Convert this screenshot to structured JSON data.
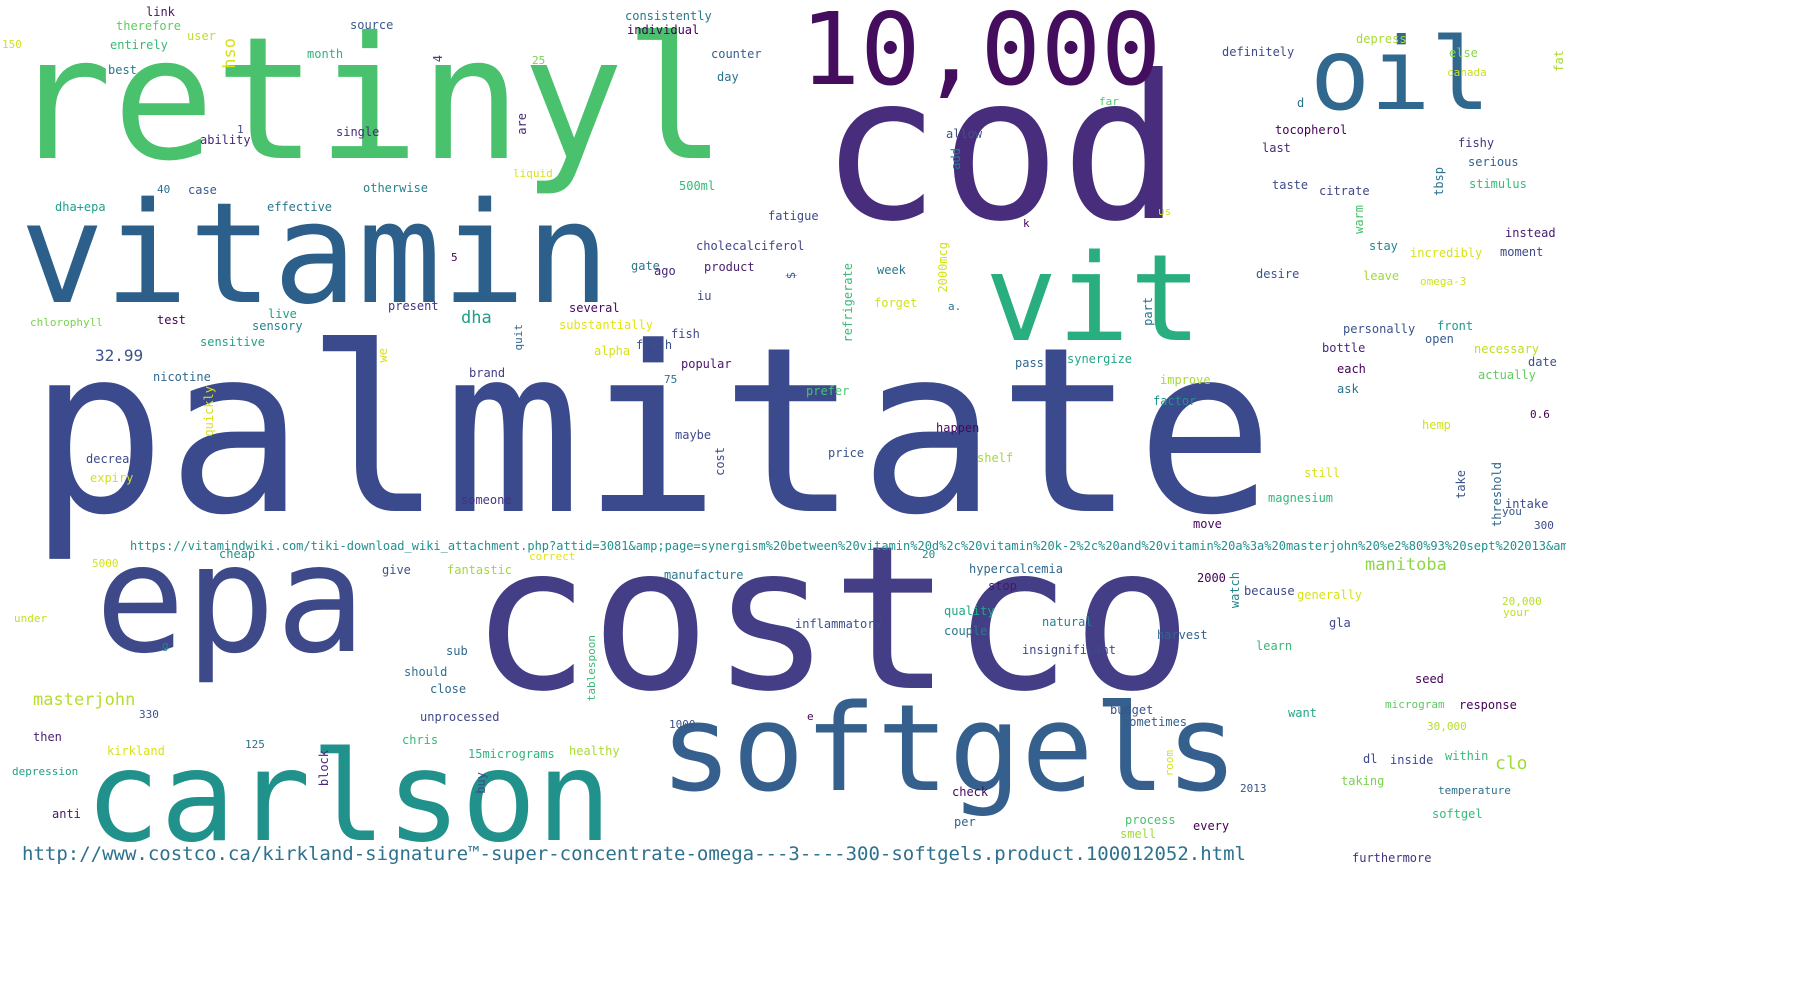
{
  "words": [
    {
      "text": "palmitate",
      "color": "#3b4a8c"
    },
    {
      "text": "costco",
      "color": "#433e85"
    },
    {
      "text": "cod",
      "color": "#472d7b"
    },
    {
      "text": "retinyl",
      "color": "#4ac16d"
    },
    {
      "text": "vitamin",
      "color": "#2c5f8a"
    },
    {
      "text": "epa",
      "color": "#3e4989"
    },
    {
      "text": "10,000",
      "color": "#440d5d"
    },
    {
      "text": "oil",
      "color": "#30688e"
    },
    {
      "text": "vit",
      "color": "#29af7f"
    },
    {
      "text": "softgels",
      "color": "#355f8d"
    },
    {
      "text": "carlson",
      "color": "#21918c"
    },
    {
      "text": "http://www.costco.ca/kirkland-signature™-super-concentrate-omega---3----300-softgels.product.100012052.html",
      "color": "#2d718e"
    },
    {
      "text": "https://vitamindwiki.com/tiki-download_wiki_attachment.php?attid=3081&amp;page=synergism%20between%20vitamin%20d%2c%20vitamin%20k-2%2c%20and%20vitamin%20a%3a%20masterjohn%20%e2%80%93%20sept%202013&amp;download=y",
      "color": "#21908d"
    },
    {
      "text": "manitoba",
      "color": "#8fd744"
    },
    {
      "text": "masterjohn",
      "color": "#b5de2b"
    },
    {
      "text": "dha",
      "color": "#1f9e89"
    },
    {
      "text": "32.99",
      "color": "#3b528b"
    },
    {
      "text": "clo",
      "color": "#a0da39"
    },
    {
      "text": "hso",
      "color": "#d8e219"
    },
    {
      "text": "chlorophyll",
      "color": "#7ad151"
    },
    {
      "text": "cholecalciferol",
      "color": "#414487"
    },
    {
      "text": "hypercalcemia",
      "color": "#31688e"
    },
    {
      "text": "therefore",
      "color": "#5ec962"
    },
    {
      "text": "source",
      "color": "#38588c"
    },
    {
      "text": "consistently",
      "color": "#2a788e"
    },
    {
      "text": "individual",
      "color": "#440154"
    },
    {
      "text": "depress",
      "color": "#a8db34"
    },
    {
      "text": "definitely",
      "color": "#3e4989"
    },
    {
      "text": "link",
      "color": "#481769"
    },
    {
      "text": "user",
      "color": "#bddf26"
    },
    {
      "text": "150",
      "color": "#d2e21b"
    },
    {
      "text": "entirely",
      "color": "#3aba76"
    },
    {
      "text": "month",
      "color": "#2fb47c"
    },
    {
      "text": "4",
      "color": "#433e85"
    },
    {
      "text": "25",
      "color": "#7ad151"
    },
    {
      "text": "counter",
      "color": "#355f8d"
    },
    {
      "text": "day",
      "color": "#2c728e"
    },
    {
      "text": "else",
      "color": "#86d549"
    },
    {
      "text": "canada",
      "color": "#c8e020"
    },
    {
      "text": "fat",
      "color": "#a8db34"
    },
    {
      "text": "best",
      "color": "#2a788e"
    },
    {
      "text": "1",
      "color": "#3e4989"
    },
    {
      "text": "ability",
      "color": "#482475"
    },
    {
      "text": "single",
      "color": "#472d7b"
    },
    {
      "text": "are",
      "color": "#482878"
    },
    {
      "text": "far",
      "color": "#52c569"
    },
    {
      "text": "d",
      "color": "#2c728e"
    },
    {
      "text": "tocopherol",
      "color": "#440154"
    },
    {
      "text": "fishy",
      "color": "#46327e"
    },
    {
      "text": "serious",
      "color": "#33638d"
    },
    {
      "text": "allow",
      "color": "#3b528b"
    },
    {
      "text": "add",
      "color": "#2a788e"
    },
    {
      "text": "last",
      "color": "#482878"
    },
    {
      "text": "liquid",
      "color": "#d8e219"
    },
    {
      "text": "500ml",
      "color": "#35b779"
    },
    {
      "text": "taste",
      "color": "#3e4a89"
    },
    {
      "text": "citrate",
      "color": "#404688"
    },
    {
      "text": "tbsp",
      "color": "#2c728e"
    },
    {
      "text": "stimulus",
      "color": "#38b977"
    },
    {
      "text": "40",
      "color": "#2c728e"
    },
    {
      "text": "case",
      "color": "#365c8d"
    },
    {
      "text": "otherwise",
      "color": "#26828e"
    },
    {
      "text": "us",
      "color": "#d2e21b"
    },
    {
      "text": "warm",
      "color": "#4ac16d"
    },
    {
      "text": "dha+epa",
      "color": "#1f9e89"
    },
    {
      "text": "effective",
      "color": "#2a768e"
    },
    {
      "text": "fatigue",
      "color": "#3e4989"
    },
    {
      "text": "k",
      "color": "#440154"
    },
    {
      "text": "instead",
      "color": "#481b6d"
    },
    {
      "text": "2000mcg",
      "color": "#d2e21b"
    },
    {
      "text": "stay",
      "color": "#25858e"
    },
    {
      "text": "incredibly",
      "color": "#d8e219"
    },
    {
      "text": "moment",
      "color": "#3e4989"
    },
    {
      "text": "5",
      "color": "#440154"
    },
    {
      "text": "gate",
      "color": "#2a788e"
    },
    {
      "text": "ago",
      "color": "#482878"
    },
    {
      "text": "product",
      "color": "#481f70"
    },
    {
      "text": "$",
      "color": "#365c8d"
    },
    {
      "text": "refrigerate",
      "color": "#3aba76"
    },
    {
      "text": "week",
      "color": "#2a788e"
    },
    {
      "text": "desire",
      "color": "#3b528b"
    },
    {
      "text": "leave",
      "color": "#a0da39"
    },
    {
      "text": "omega-3",
      "color": "#d2e21b"
    },
    {
      "text": "test",
      "color": "#440154"
    },
    {
      "text": "live",
      "color": "#1fa188"
    },
    {
      "text": "sensory",
      "color": "#25838e"
    },
    {
      "text": "iu",
      "color": "#3e4a89"
    },
    {
      "text": "several",
      "color": "#46085c"
    },
    {
      "text": "forget",
      "color": "#d2e21b"
    },
    {
      "text": "a.",
      "color": "#2c728e"
    },
    {
      "text": "present",
      "color": "#46327e"
    },
    {
      "text": "part",
      "color": "#2c728e"
    },
    {
      "text": "personally",
      "color": "#3b528b"
    },
    {
      "text": "front",
      "color": "#1f9a8a"
    },
    {
      "text": "open",
      "color": "#365c8d"
    },
    {
      "text": "substantially",
      "color": "#e2e418"
    },
    {
      "text": "fish",
      "color": "#3e4989"
    },
    {
      "text": "quit",
      "color": "#31688e"
    },
    {
      "text": "sensitive",
      "color": "#1fa187"
    },
    {
      "text": "alpha",
      "color": "#d8e219"
    },
    {
      "text": "fresh",
      "color": "#3b528b"
    },
    {
      "text": "synergize",
      "color": "#22a785"
    },
    {
      "text": "bottle",
      "color": "#482878"
    },
    {
      "text": "necessary",
      "color": "#bddf26"
    },
    {
      "text": "date",
      "color": "#3b528b"
    },
    {
      "text": "nicotine",
      "color": "#31688e"
    },
    {
      "text": "we",
      "color": "#d8e219"
    },
    {
      "text": "brand",
      "color": "#433e85"
    },
    {
      "text": "75",
      "color": "#2c728e"
    },
    {
      "text": "popular",
      "color": "#481669"
    },
    {
      "text": "pass",
      "color": "#31688e"
    },
    {
      "text": "improve",
      "color": "#a8db34"
    },
    {
      "text": "each",
      "color": "#440154"
    },
    {
      "text": "actually",
      "color": "#63cb5f"
    },
    {
      "text": "prefer",
      "color": "#4ac16d"
    },
    {
      "text": "factor",
      "color": "#21918c"
    },
    {
      "text": "ask",
      "color": "#2c728e"
    },
    {
      "text": "quickly",
      "color": "#d8e219"
    },
    {
      "text": "0.6",
      "color": "#440154"
    },
    {
      "text": "happen",
      "color": "#46085c"
    },
    {
      "text": "hemp",
      "color": "#d2e21b"
    },
    {
      "text": "decrease",
      "color": "#3e4989"
    },
    {
      "text": "maybe",
      "color": "#3e4989"
    },
    {
      "text": "price",
      "color": "#3b528b"
    },
    {
      "text": "shelf",
      "color": "#a0da39"
    },
    {
      "text": "expiry",
      "color": "#d2e21b"
    },
    {
      "text": "cost",
      "color": "#3e4989"
    },
    {
      "text": "still",
      "color": "#d8e219"
    },
    {
      "text": "threshold",
      "color": "#30688e"
    },
    {
      "text": "take",
      "color": "#3b528b"
    },
    {
      "text": "someone",
      "color": "#46327e"
    },
    {
      "text": "magnesium",
      "color": "#35b779"
    },
    {
      "text": "intake",
      "color": "#3e4989"
    },
    {
      "text": "you",
      "color": "#38588c"
    },
    {
      "text": "move",
      "color": "#46085c"
    },
    {
      "text": "300",
      "color": "#3e4989"
    },
    {
      "text": "cheap",
      "color": "#21918c"
    },
    {
      "text": "correct",
      "color": "#e2e418"
    },
    {
      "text": "20",
      "color": "#23888e"
    },
    {
      "text": "5000",
      "color": "#d8e219"
    },
    {
      "text": "give",
      "color": "#3b528b"
    },
    {
      "text": "fantastic",
      "color": "#a0da39"
    },
    {
      "text": "manufacture",
      "color": "#2a788e"
    },
    {
      "text": "stop",
      "color": "#481769"
    },
    {
      "text": "2000",
      "color": "#440154"
    },
    {
      "text": "watch",
      "color": "#25858e"
    },
    {
      "text": "because",
      "color": "#3e4989"
    },
    {
      "text": "generally",
      "color": "#d8e219"
    },
    {
      "text": "20,000",
      "color": "#b5de2b"
    },
    {
      "text": "your",
      "color": "#bddf26"
    },
    {
      "text": "under",
      "color": "#c2df23"
    },
    {
      "text": "g",
      "color": "#26828e"
    },
    {
      "text": "quality",
      "color": "#22a785"
    },
    {
      "text": "couple",
      "color": "#2a788e"
    },
    {
      "text": "inflammatory",
      "color": "#3b528b"
    },
    {
      "text": "natural",
      "color": "#25838e"
    },
    {
      "text": "gla",
      "color": "#3e4989"
    },
    {
      "text": "harvest",
      "color": "#33638d"
    },
    {
      "text": "sub",
      "color": "#31688e"
    },
    {
      "text": "tablespoon",
      "color": "#3aba76"
    },
    {
      "text": "insignificant",
      "color": "#3e4989"
    },
    {
      "text": "learn",
      "color": "#38b977"
    },
    {
      "text": "should",
      "color": "#2c728e"
    },
    {
      "text": "close",
      "color": "#31688e"
    },
    {
      "text": "seed",
      "color": "#440154"
    },
    {
      "text": "330",
      "color": "#3b528b"
    },
    {
      "text": "unprocessed",
      "color": "#3e4989"
    },
    {
      "text": "e",
      "color": "#440154"
    },
    {
      "text": "budget",
      "color": "#3b528b"
    },
    {
      "text": "microgram",
      "color": "#5ec962"
    },
    {
      "text": "response",
      "color": "#440154"
    },
    {
      "text": "sometimes",
      "color": "#355f8d"
    },
    {
      "text": "want",
      "color": "#22a785"
    },
    {
      "text": "then",
      "color": "#481f70"
    },
    {
      "text": "1000",
      "color": "#3b528b"
    },
    {
      "text": "30,000",
      "color": "#b5de2b"
    },
    {
      "text": "chris",
      "color": "#38b977"
    },
    {
      "text": "125",
      "color": "#2c728e"
    },
    {
      "text": "kirkland",
      "color": "#d8e219"
    },
    {
      "text": "block",
      "color": "#482878"
    },
    {
      "text": "15micrograms",
      "color": "#2fb47c"
    },
    {
      "text": "healthy",
      "color": "#a8db34"
    },
    {
      "text": "room",
      "color": "#d2e21b"
    },
    {
      "text": "dl",
      "color": "#3e4989"
    },
    {
      "text": "inside",
      "color": "#3e4989"
    },
    {
      "text": "within",
      "color": "#3aba76"
    },
    {
      "text": "depression",
      "color": "#1f9e89"
    },
    {
      "text": "buy",
      "color": "#3e4989"
    },
    {
      "text": "taking",
      "color": "#7ad151"
    },
    {
      "text": "temperature",
      "color": "#2c728e"
    },
    {
      "text": "2013",
      "color": "#3b528b"
    },
    {
      "text": "check",
      "color": "#46085c"
    },
    {
      "text": "anti",
      "color": "#481769"
    },
    {
      "text": "process",
      "color": "#4ac16d"
    },
    {
      "text": "softgel",
      "color": "#38b977"
    },
    {
      "text": "per",
      "color": "#355f8d"
    },
    {
      "text": "smell",
      "color": "#a0da39"
    },
    {
      "text": "every",
      "color": "#440154"
    },
    {
      "text": "furthermore",
      "color": "#46327e"
    }
  ]
}
